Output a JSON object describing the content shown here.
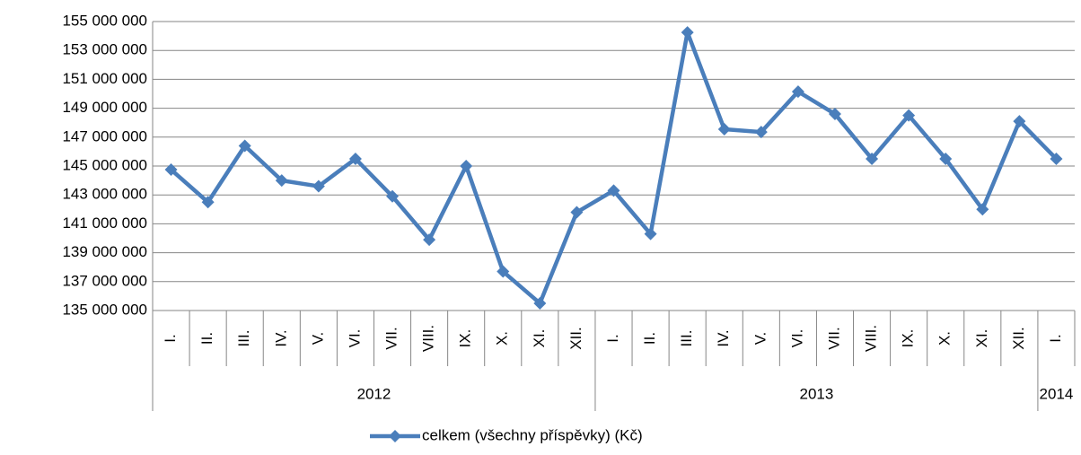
{
  "chart_data": {
    "type": "line",
    "groups": [
      {
        "name": "2012",
        "categories": [
          "I.",
          "II.",
          "III.",
          "IV.",
          "V.",
          "VI.",
          "VII.",
          "VIII.",
          "IX.",
          "X.",
          "XI.",
          "XII."
        ]
      },
      {
        "name": "2013",
        "categories": [
          "I.",
          "II.",
          "III.",
          "IV.",
          "V.",
          "VI.",
          "VII.",
          "VIII.",
          "IX.",
          "X.",
          "XI.",
          "XII."
        ]
      },
      {
        "name": "2014",
        "categories": [
          "I."
        ]
      }
    ],
    "series": [
      {
        "name": "celkem (všechny příspěvky) (Kč)",
        "color": "#4a7ebb",
        "values": [
          144750000,
          142500000,
          146400000,
          144000000,
          143600000,
          145500000,
          142900000,
          139900000,
          145000000,
          137700000,
          135500000,
          141800000,
          143300000,
          140300000,
          154250000,
          147550000,
          147350000,
          150150000,
          148600000,
          145500000,
          148500000,
          145500000,
          142000000,
          148100000,
          145500000
        ]
      }
    ],
    "ylim": [
      135000000,
      155000000
    ],
    "yticks": [
      {
        "value": 135000000,
        "label": "135 000 000"
      },
      {
        "value": 137000000,
        "label": "137 000 000"
      },
      {
        "value": 139000000,
        "label": "139 000 000"
      },
      {
        "value": 141000000,
        "label": "141 000 000"
      },
      {
        "value": 143000000,
        "label": "143 000 000"
      },
      {
        "value": 145000000,
        "label": "145 000 000"
      },
      {
        "value": 147000000,
        "label": "147 000 000"
      },
      {
        "value": 149000000,
        "label": "149 000 000"
      },
      {
        "value": 151000000,
        "label": "151 000 000"
      },
      {
        "value": 153000000,
        "label": "153 000 000"
      },
      {
        "value": 155000000,
        "label": "155 000 000"
      }
    ],
    "grid": true,
    "legend": "bottom"
  }
}
